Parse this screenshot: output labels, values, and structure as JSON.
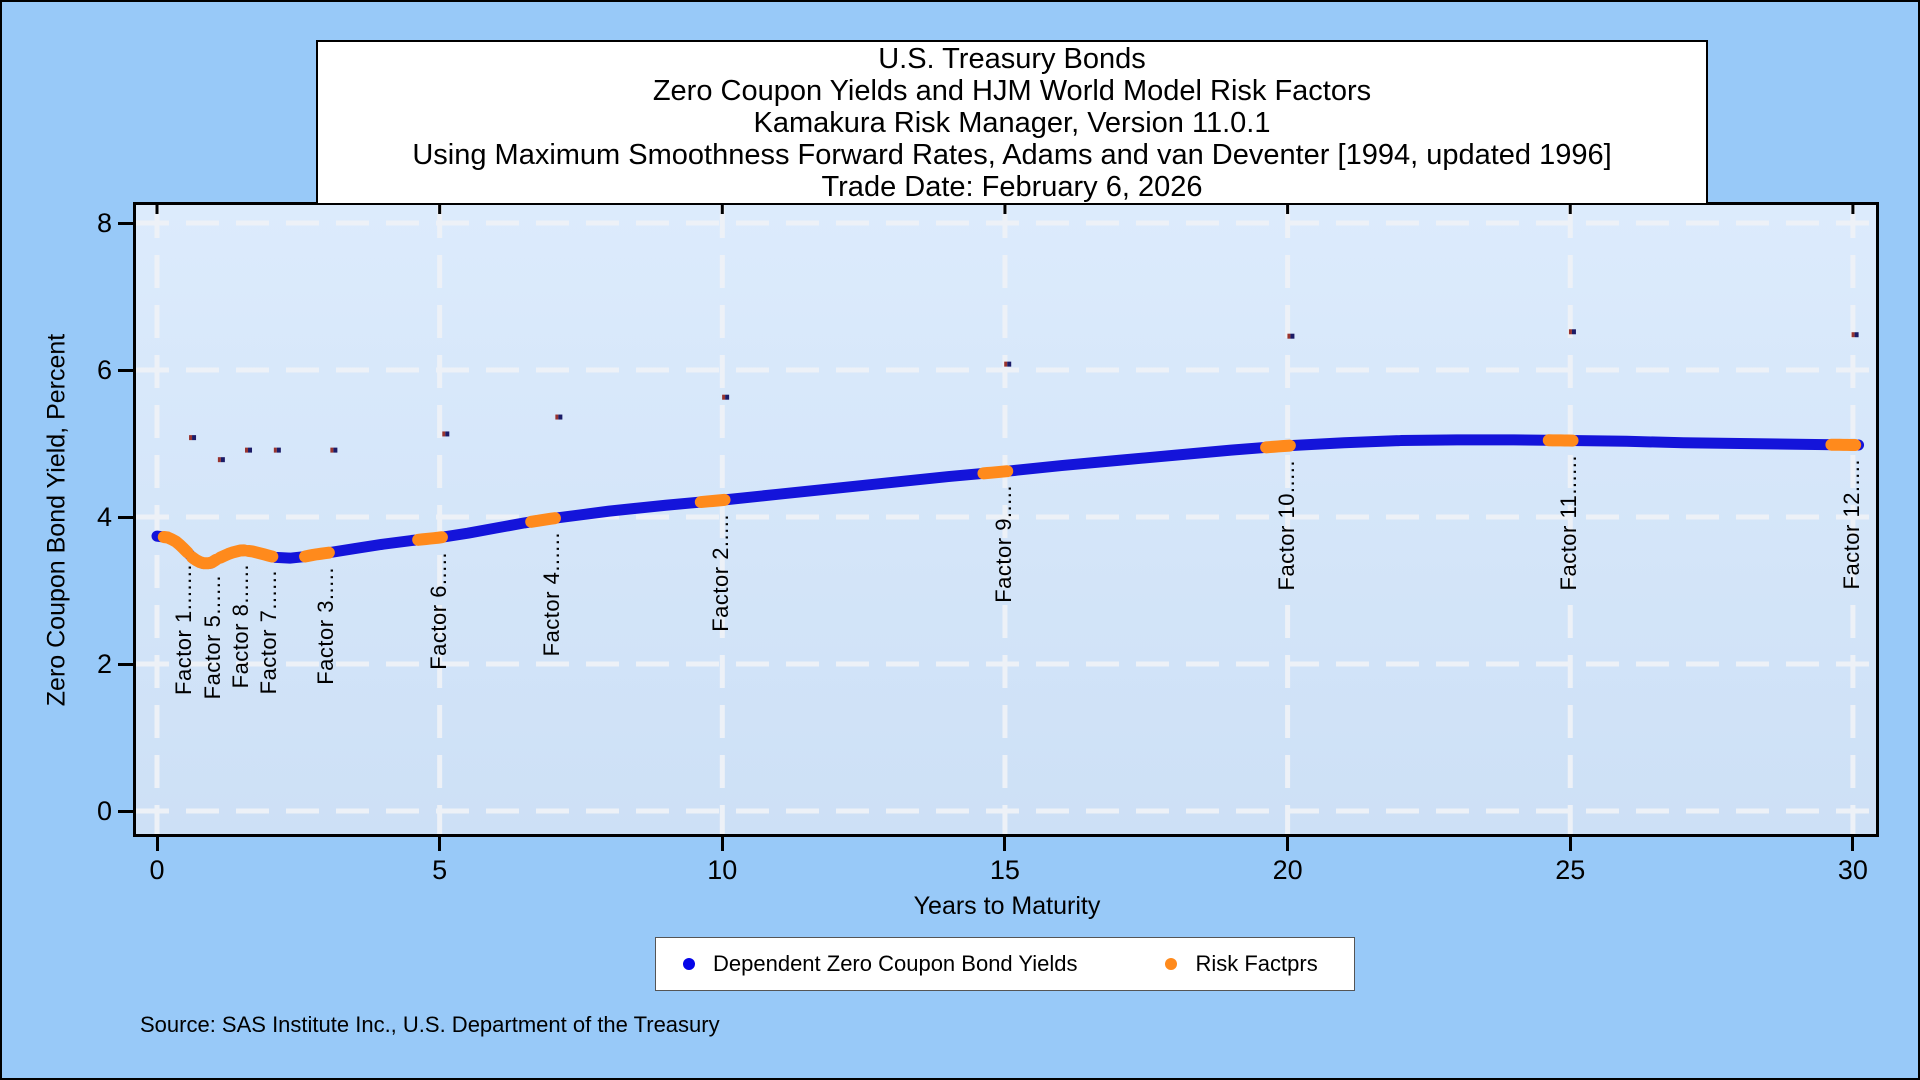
{
  "title": {
    "lines": [
      "U.S. Treasury Bonds",
      "Zero Coupon Yields and HJM World Model Risk Factors",
      "Kamakura Risk Manager, Version 11.0.1",
      "Using Maximum Smoothness Forward Rates, Adams and van Deventer [1994, updated 1996]",
      "Trade Date: February 6, 2026"
    ]
  },
  "source_note": "Source: SAS Institute Inc., U.S. Department of the Treasury",
  "legend": {
    "items": [
      {
        "label": "Dependent Zero Coupon Bond Yields",
        "color": "#0505e8"
      },
      {
        "label": "Risk Factprs",
        "color": "#ff8a1c"
      }
    ]
  },
  "colors": {
    "page_background": "#98c9f8",
    "plot_background_top": "#dcebfc",
    "plot_background_bottom": "#cde0f6",
    "gridline": "#edf1f7",
    "curve_blue": "#1414da",
    "factor_orange": "#ff8a1c",
    "outlier_navy": "#1b1b66",
    "outlier_red": "#99332e"
  },
  "chart_data": {
    "type": "scatter",
    "xlabel": "Years to Maturity",
    "ylabel": "Zero Coupon Bond Yield, Percent",
    "xlim": [
      0,
      30
    ],
    "ylim": [
      0,
      8
    ],
    "x_ticks": [
      0,
      5,
      10,
      15,
      20,
      25,
      30
    ],
    "y_ticks": [
      0,
      2,
      4,
      6,
      8
    ],
    "grid": "white dashed gridlines at all major ticks",
    "legend_position": "bottom center",
    "series": [
      {
        "name": "Dependent Zero Coupon Bond Yields",
        "style": "dense dot curve",
        "points": [
          [
            0,
            3.74
          ],
          [
            0.2,
            3.72
          ],
          [
            0.35,
            3.66
          ],
          [
            0.5,
            3.55
          ],
          [
            0.65,
            3.43
          ],
          [
            0.8,
            3.37
          ],
          [
            0.95,
            3.37
          ],
          [
            1.0,
            3.4
          ],
          [
            1.1,
            3.44
          ],
          [
            1.3,
            3.51
          ],
          [
            1.5,
            3.55
          ],
          [
            1.7,
            3.53
          ],
          [
            1.9,
            3.49
          ],
          [
            2.1,
            3.45
          ],
          [
            2.35,
            3.44
          ],
          [
            2.6,
            3.46
          ],
          [
            2.8,
            3.49
          ],
          [
            3.0,
            3.51
          ],
          [
            3.5,
            3.57
          ],
          [
            4.0,
            3.63
          ],
          [
            4.5,
            3.68
          ],
          [
            5.0,
            3.72
          ],
          [
            5.5,
            3.78
          ],
          [
            6.0,
            3.85
          ],
          [
            6.5,
            3.92
          ],
          [
            7.0,
            3.98
          ],
          [
            7.5,
            4.03
          ],
          [
            8.0,
            4.08
          ],
          [
            9.0,
            4.16
          ],
          [
            10.0,
            4.23
          ],
          [
            11,
            4.31
          ],
          [
            12,
            4.39
          ],
          [
            13,
            4.47
          ],
          [
            14,
            4.55
          ],
          [
            15,
            4.62
          ],
          [
            16,
            4.7
          ],
          [
            17,
            4.77
          ],
          [
            18,
            4.84
          ],
          [
            19,
            4.91
          ],
          [
            20,
            4.97
          ],
          [
            21,
            5.01
          ],
          [
            22,
            5.04
          ],
          [
            23,
            5.05
          ],
          [
            24,
            5.05
          ],
          [
            25,
            5.04
          ],
          [
            26,
            5.03
          ],
          [
            27,
            5.01
          ],
          [
            28,
            5.0
          ],
          [
            29,
            4.99
          ],
          [
            30,
            4.98
          ],
          [
            30.1,
            4.98
          ]
        ]
      },
      {
        "name": "Risk Factprs",
        "style": "orange segments drawn on the yield curve at each factor maturity",
        "factors": [
          {
            "label": "Factor 1.......",
            "maturity": 0.5,
            "yield_pct": 3.55,
            "outlier_point": [
              0.62,
              5.08
            ]
          },
          {
            "label": "Factor 5......",
            "maturity": 1.0,
            "yield_pct": 3.4,
            "outlier_point": [
              1.13,
              4.78
            ]
          },
          {
            "label": "Factor 8......",
            "maturity": 1.5,
            "yield_pct": 3.55,
            "outlier_point": [
              1.61,
              4.91
            ]
          },
          {
            "label": "Factor 7......",
            "maturity": 2.0,
            "yield_pct": 3.47,
            "outlier_point": [
              2.12,
              4.91
            ]
          },
          {
            "label": "Factor 3.....",
            "maturity": 3.0,
            "yield_pct": 3.51,
            "outlier_point": [
              3.12,
              4.91
            ]
          },
          {
            "label": "Factor 6.....",
            "maturity": 5.0,
            "yield_pct": 3.72,
            "outlier_point": [
              5.1,
              5.13
            ]
          },
          {
            "label": "Factor 4......",
            "maturity": 7.0,
            "yield_pct": 3.98,
            "outlier_point": [
              7.1,
              5.36
            ]
          },
          {
            "label": "Factor 2.....",
            "maturity": 10.0,
            "yield_pct": 4.23,
            "outlier_point": [
              10.05,
              5.63
            ]
          },
          {
            "label": "Factor 9.....",
            "maturity": 15.0,
            "yield_pct": 4.62,
            "outlier_point": [
              15.04,
              6.08
            ]
          },
          {
            "label": "Factor 10.....",
            "maturity": 20.0,
            "yield_pct": 4.97,
            "outlier_point": [
              20.05,
              6.46
            ]
          },
          {
            "label": "Factor 11......",
            "maturity": 25.0,
            "yield_pct": 5.04,
            "outlier_point": [
              25.03,
              6.52
            ]
          },
          {
            "label": "Factor 12.....",
            "maturity": 30.0,
            "yield_pct": 4.98,
            "outlier_point": [
              30.03,
              6.48
            ]
          }
        ]
      }
    ]
  }
}
